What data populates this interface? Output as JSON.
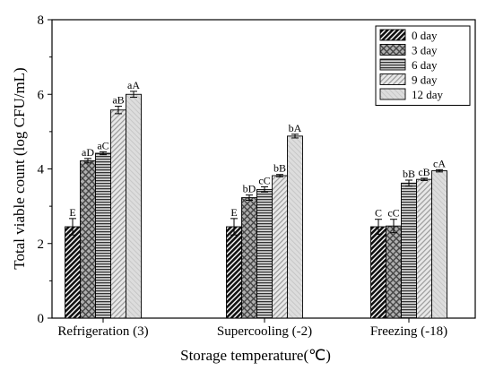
{
  "chart_data": {
    "type": "bar",
    "xlabel": "Storage temperature(℃)",
    "ylabel": "Total viable count (log CFU/mL)",
    "ylim": [
      0,
      8
    ],
    "yticks": [
      "0",
      "2",
      "4",
      "6",
      "8"
    ],
    "categories": [
      "Refrigeration (3)",
      "Supercooling (-2)",
      "Freezing (-18)"
    ],
    "series": [
      {
        "name": "0 day",
        "values": [
          2.45,
          2.45,
          2.45
        ],
        "errors": [
          0.22,
          0.22,
          0.2
        ],
        "labels": [
          "E",
          "E",
          "C"
        ],
        "color": "#222222",
        "pattern": "diag-dark"
      },
      {
        "name": "3 day",
        "values": [
          4.22,
          3.23,
          2.47
        ],
        "errors": [
          0.06,
          0.07,
          0.18
        ],
        "labels": [
          "aD",
          "bD",
          "cC"
        ],
        "color": "#8a8a8a",
        "pattern": "crosshatch"
      },
      {
        "name": "6 day",
        "values": [
          4.42,
          3.45,
          3.62
        ],
        "errors": [
          0.04,
          0.07,
          0.08
        ],
        "labels": [
          "aC",
          "cC",
          "bB"
        ],
        "color": "#777777",
        "pattern": "horizontal"
      },
      {
        "name": "9 day",
        "values": [
          5.58,
          3.82,
          3.72
        ],
        "errors": [
          0.1,
          0.03,
          0.03
        ],
        "labels": [
          "aB",
          "bB",
          "cB"
        ],
        "color": "#d0d0d0",
        "pattern": "diag-light"
      },
      {
        "name": "12 day",
        "values": [
          6.0,
          4.88,
          3.95
        ],
        "errors": [
          0.08,
          0.05,
          0.03
        ],
        "labels": [
          "aA",
          "bA",
          "cA"
        ],
        "color": "#dcdcdc",
        "pattern": "solid-light"
      }
    ],
    "legend_position": "top-right",
    "grid": false
  }
}
